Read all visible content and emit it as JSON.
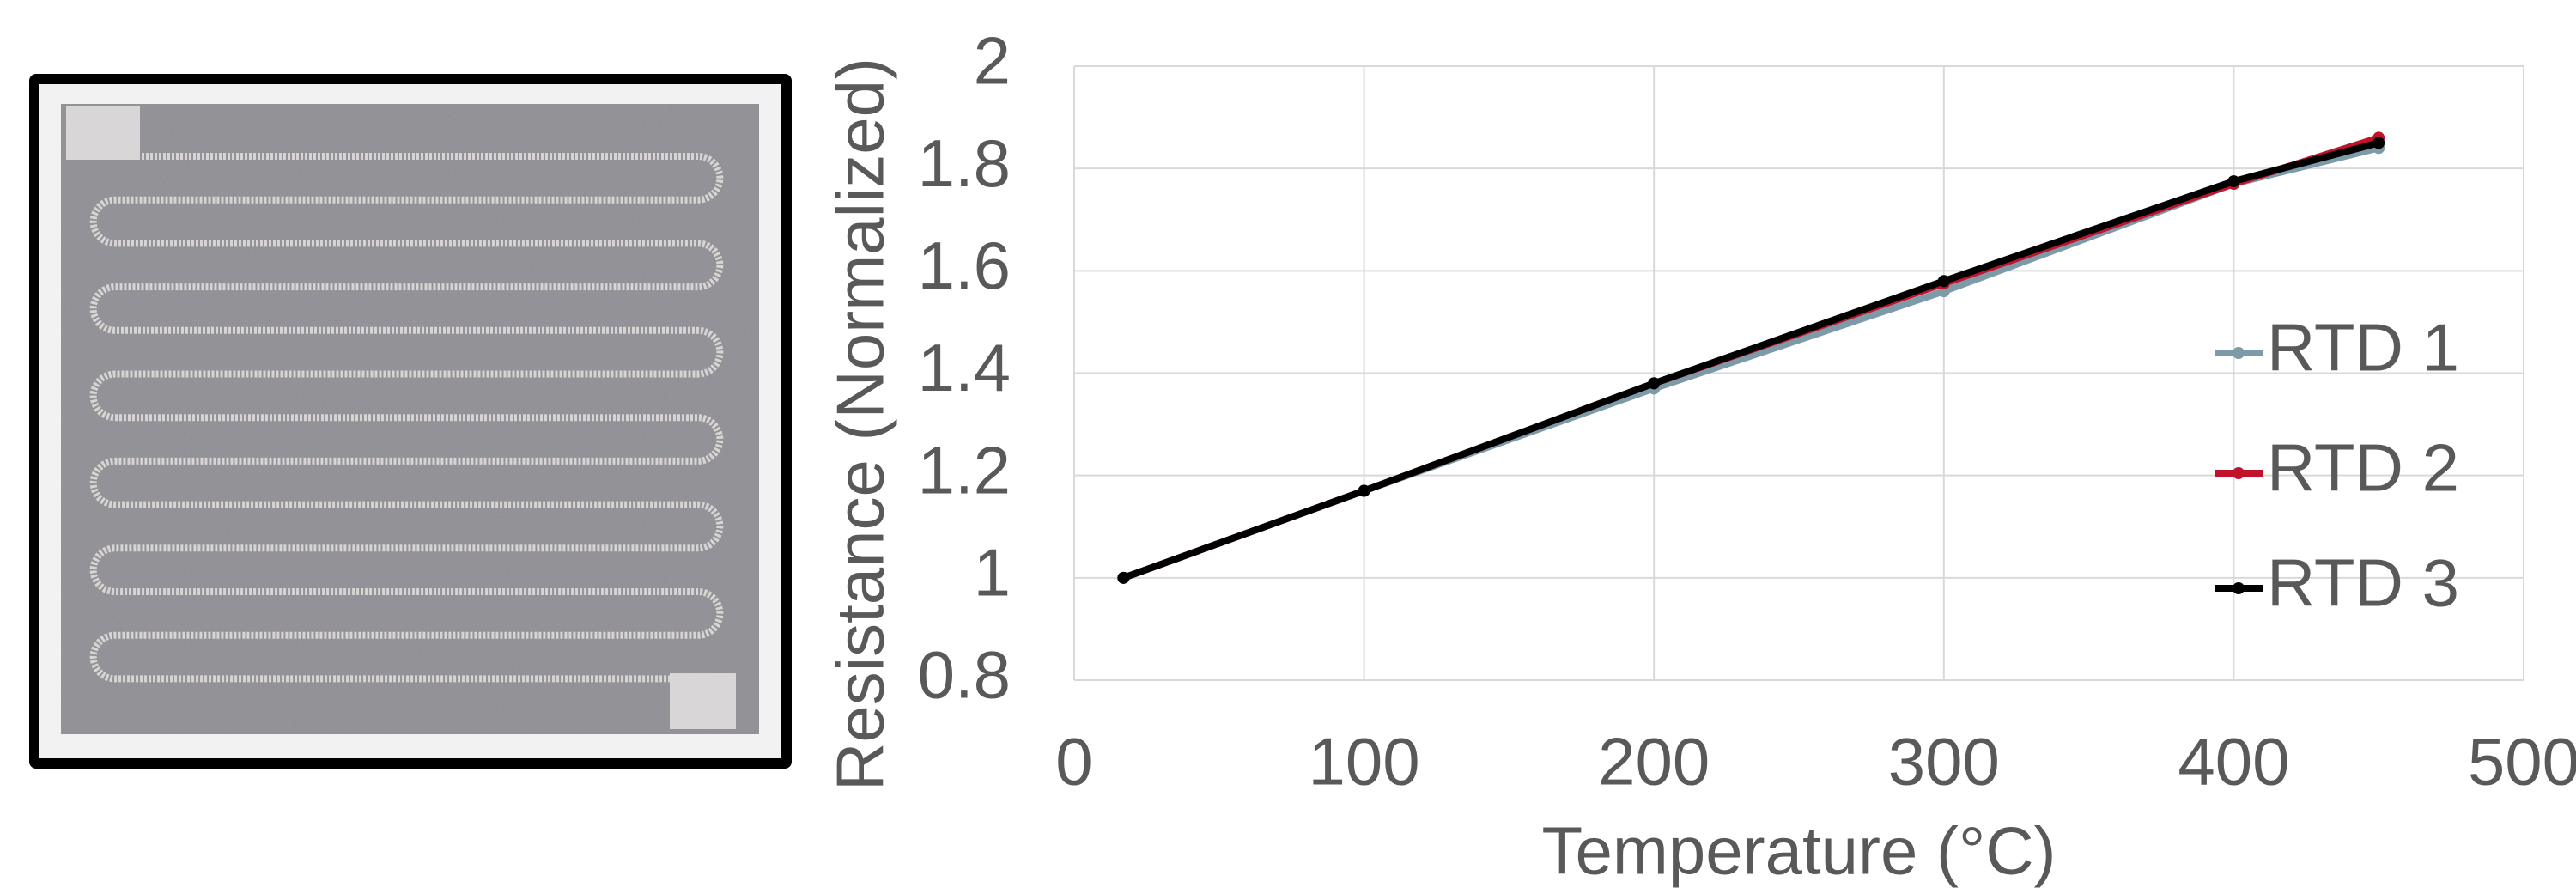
{
  "chart_data": {
    "type": "line",
    "x_label": "Temperature (°C)",
    "y_label": "Resistance (Normalized)",
    "x": [
      17,
      100,
      200,
      300,
      400,
      450
    ],
    "series": [
      {
        "name": "RTD 1",
        "color": "#7d9aa8",
        "values": [
          1,
          1.17,
          1.37,
          1.56,
          1.77,
          1.84
        ]
      },
      {
        "name": "RTD 2",
        "color": "#c0142c",
        "values": [
          1,
          1.17,
          1.38,
          1.575,
          1.77,
          1.86
        ]
      },
      {
        "name": "RTD 3",
        "color": "#000000",
        "values": [
          1,
          1.17,
          1.38,
          1.58,
          1.775,
          1.85
        ]
      }
    ],
    "xlim": [
      0,
      500
    ],
    "xticks": [
      0,
      100,
      200,
      300,
      400,
      500
    ],
    "ylim": [
      0.8,
      2
    ],
    "yticks": [
      0.8,
      1,
      1.2,
      1.4,
      1.6,
      1.8,
      2
    ],
    "grid": true,
    "legend": "right"
  }
}
